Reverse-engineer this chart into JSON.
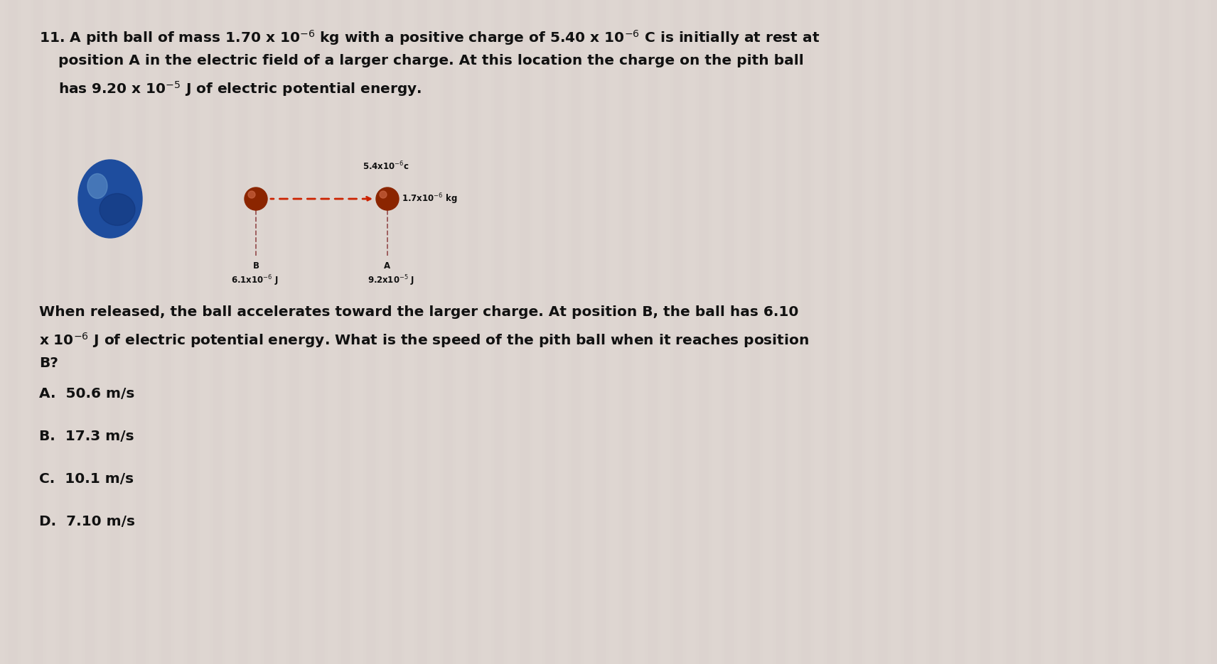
{
  "bg_color": "#ddd5d0",
  "stripe_color_light": "#e8e0dc",
  "stripe_color_mid": "#d4ccc8",
  "text_color": "#111111",
  "font_size_q": 14.5,
  "font_size_ans": 14.5,
  "font_size_diag": 8.5,
  "line1": "11. A pith ball of mass 1.70 x 10",
  "line1_sup": "-6",
  "line1b": " kg with a positive charge of 5.40 x 10",
  "line1_sup2": "-6",
  "line1c": " C is initially at rest at",
  "line2": "    position A in the electric field of a larger charge. At this location the charge on the pith ball",
  "line3": "    has 9.20 x 10",
  "line3_sup": "-5",
  "line3b": " J of electric potential energy.",
  "followup1": "When released, the ball accelerates toward the larger charge. At position B, the ball has 6.10",
  "followup2": "x 10",
  "followup2_sup": "-6",
  "followup2b": " J of electric potential energy. What is the speed of the pith ball when it reaches position",
  "followup3": "B?",
  "ans_A": "A.  50.6 m/s",
  "ans_B": "B.  17.3 m/s",
  "ans_C": "C.  10.1 m/s",
  "ans_D": "D.  7.10 m/s",
  "diag_charge_label": "5.4x10",
  "diag_charge_sup": "-6",
  "diag_charge_unit": " c",
  "diag_mass_label": "1.7x10",
  "diag_mass_sup": "-6",
  "diag_mass_unit": " kg",
  "diag_B_label": "B",
  "diag_B_energy": "6.1x10",
  "diag_B_sup": "-6",
  "diag_B_unit": " J",
  "diag_A_label": "A",
  "diag_A_energy": "9.2x10",
  "diag_A_sup": "-5",
  "diag_A_unit": " J"
}
